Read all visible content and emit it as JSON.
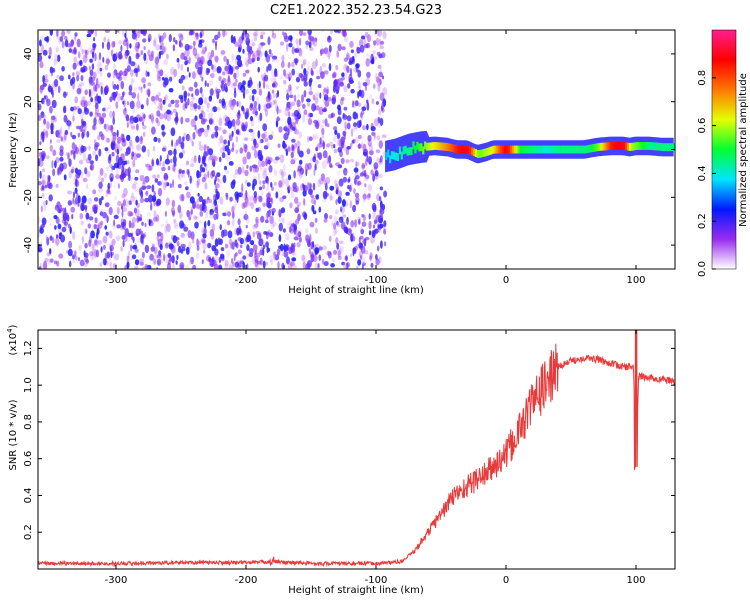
{
  "title": "C2E1.2022.352.23.54.G23",
  "chart_data": [
    {
      "type": "heatmap",
      "xlabel": "Height of straight line (km)",
      "ylabel": "Frequency (Hz)",
      "xlim": [
        -360,
        130
      ],
      "ylim": [
        -50,
        50
      ],
      "x_ticks": [
        -300,
        -200,
        -100,
        0,
        100
      ],
      "y_ticks": [
        -40,
        -20,
        0,
        20,
        40
      ],
      "noise_region": {
        "x_start": -360,
        "x_end": -93,
        "note_color": "#7a1ff0"
      },
      "ridge": {
        "x": [
          -93,
          -85,
          -75,
          -65,
          -55,
          -45,
          -38,
          -30,
          -22,
          -15,
          -10,
          -5,
          0,
          10,
          20,
          30,
          40,
          50,
          60,
          70,
          80,
          90,
          95,
          100,
          110,
          120,
          130
        ],
        "freq": [
          -3,
          -2,
          0,
          1,
          1.5,
          1,
          0,
          0,
          -2,
          -1,
          0,
          0,
          0,
          0,
          0,
          0,
          0,
          0,
          0,
          1,
          1.5,
          1.5,
          1,
          1.5,
          1.5,
          1,
          1
        ],
        "amp": [
          0.35,
          0.4,
          0.45,
          0.55,
          0.65,
          0.75,
          0.85,
          0.9,
          0.55,
          0.6,
          0.65,
          0.8,
          0.9,
          0.5,
          0.45,
          0.4,
          0.45,
          0.45,
          0.45,
          0.55,
          0.85,
          0.9,
          0.6,
          0.55,
          0.45,
          0.45,
          0.45
        ],
        "width_hz": 3
      },
      "colorbar": {
        "label": "Normalized spectral amplitude",
        "range": [
          0.0,
          1.0
        ],
        "ticks": [
          0.0,
          0.2,
          0.4,
          0.6,
          0.8
        ],
        "colors": [
          "#ffffff",
          "#9a2cf0",
          "#0019ff",
          "#00e5ff",
          "#00ff30",
          "#e5ff00",
          "#ff7700",
          "#ff0000",
          "#ff1f8f"
        ]
      }
    },
    {
      "type": "line",
      "xlabel": "Height of straight line (km)",
      "ylabel": "SNR (10 * v/v)",
      "multiplier": "(x10",
      "multiplier_exp": "4",
      "multiplier_close": ")",
      "xlim": [
        -360,
        130
      ],
      "ylim": [
        0,
        1.3
      ],
      "x_ticks": [
        -300,
        -200,
        -100,
        0,
        100
      ],
      "y_ticks": [
        0.2,
        0.4,
        0.6,
        0.8,
        1.0,
        1.2
      ],
      "color": "#e83a3a",
      "series": [
        {
          "x": [
            -360,
            -300,
            -250,
            -200,
            -180,
            -150,
            -100,
            -80,
            -70,
            -60,
            -50,
            -40,
            -30,
            -20,
            -10,
            0,
            10,
            20,
            30,
            40,
            50,
            60,
            70,
            80,
            90,
            98,
            100,
            102,
            110,
            120,
            130
          ],
          "values": [
            0.03,
            0.03,
            0.035,
            0.035,
            0.04,
            0.03,
            0.03,
            0.04,
            0.1,
            0.2,
            0.3,
            0.4,
            0.45,
            0.5,
            0.55,
            0.62,
            0.75,
            0.9,
            1.0,
            1.1,
            1.13,
            1.15,
            1.14,
            1.12,
            1.1,
            1.1,
            0.55,
            1.05,
            1.04,
            1.03,
            1.02
          ]
        }
      ]
    }
  ]
}
